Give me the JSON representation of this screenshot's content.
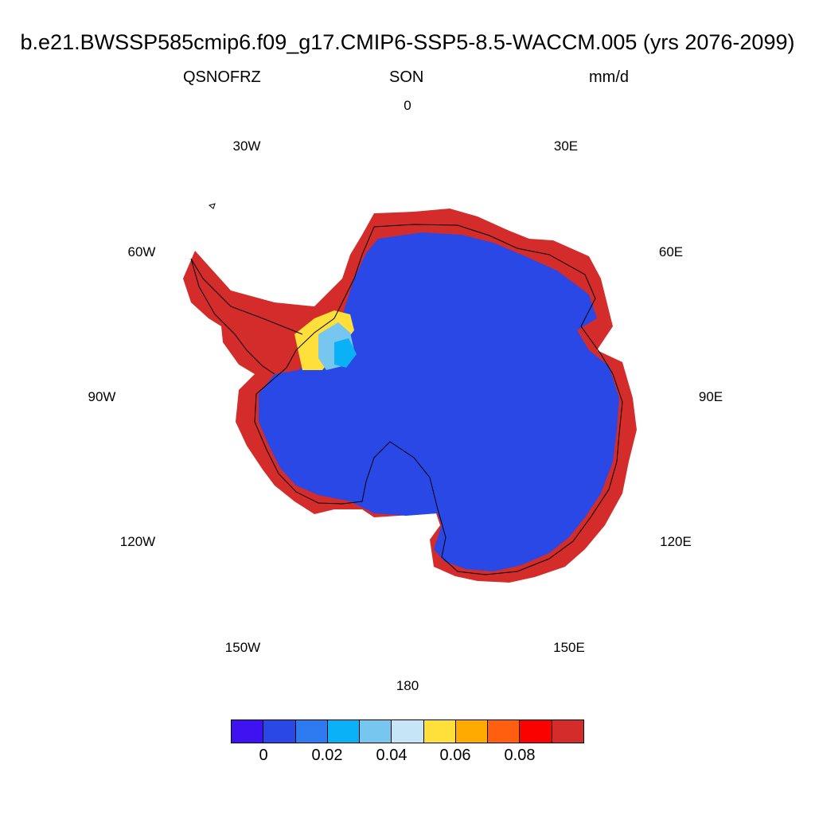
{
  "title": "b.e21.BWSSP585cmip6.f09_g17.CMIP6-SSP5-8.5-WACCM.005 (yrs 2076-2099)",
  "variable": "QSNOFRZ",
  "season": "SON",
  "units": "mm/d",
  "longitude_labels": [
    "0",
    "30E",
    "60E",
    "90E",
    "120E",
    "150E",
    "180",
    "150W",
    "120W",
    "90W",
    "60W",
    "30W"
  ],
  "colorbar": {
    "colors": [
      "#3f12f2",
      "#2a48e6",
      "#2e7af0",
      "#0ab1f6",
      "#76c6ef",
      "#c6e5f7",
      "#ffe03a",
      "#ffaa00",
      "#ff5f0f",
      "#f90200",
      "#d32c2a"
    ],
    "labels": [
      "0",
      "0.02",
      "0.04",
      "0.06",
      "0.08"
    ]
  },
  "colors": {
    "interior": "#2a48e6",
    "coastal_fringe": "#d32c2a",
    "coastline": "#000000"
  }
}
